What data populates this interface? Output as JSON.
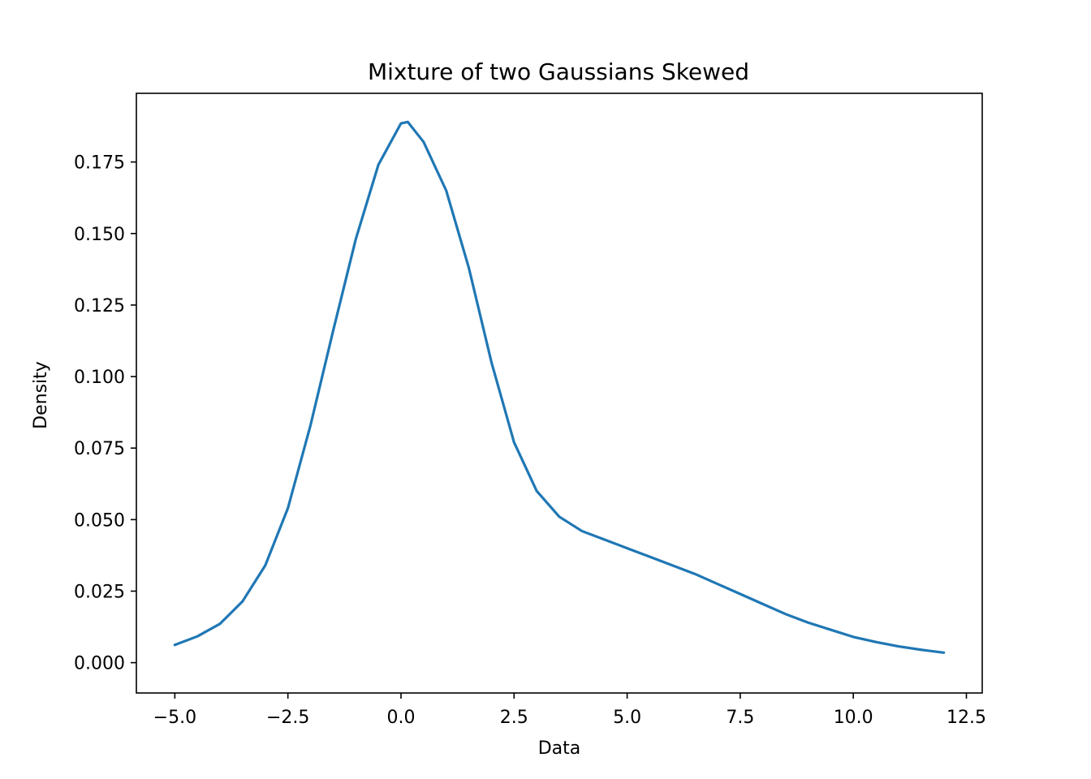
{
  "chart_data": {
    "type": "line",
    "title": "Mixture of two Gaussians Skewed",
    "xlabel": "Data",
    "ylabel": "Density",
    "xlim": [
      -5.85,
      12.85
    ],
    "ylim": [
      -0.0106,
      0.199
    ],
    "xticks": [
      -5.0,
      -2.5,
      0.0,
      2.5,
      5.0,
      7.5,
      10.0,
      12.5
    ],
    "xtick_labels": [
      "−5.0",
      "−2.5",
      "0.0",
      "2.5",
      "5.0",
      "7.5",
      "10.0",
      "12.5"
    ],
    "yticks": [
      0.0,
      0.025,
      0.05,
      0.075,
      0.1,
      0.125,
      0.15,
      0.175
    ],
    "ytick_labels": [
      "0.000",
      "0.025",
      "0.050",
      "0.075",
      "0.100",
      "0.125",
      "0.150",
      "0.175"
    ],
    "grid": false,
    "legend": false,
    "series": [
      {
        "color": "#1f77b4",
        "x": [
          -5.0,
          -4.5,
          -4.0,
          -3.5,
          -3.0,
          -2.5,
          -2.0,
          -1.5,
          -1.0,
          -0.5,
          0.0,
          0.15,
          0.5,
          1.0,
          1.5,
          2.0,
          2.5,
          3.0,
          3.5,
          4.0,
          4.5,
          5.0,
          5.5,
          6.0,
          6.5,
          7.0,
          7.5,
          8.0,
          8.5,
          9.0,
          9.5,
          10.0,
          10.5,
          11.0,
          11.5,
          12.0
        ],
        "y": [
          0.0062,
          0.0092,
          0.0136,
          0.0215,
          0.034,
          0.054,
          0.083,
          0.116,
          0.148,
          0.174,
          0.1885,
          0.189,
          0.182,
          0.165,
          0.138,
          0.105,
          0.077,
          0.06,
          0.051,
          0.046,
          0.043,
          0.04,
          0.037,
          0.034,
          0.031,
          0.0275,
          0.024,
          0.0205,
          0.017,
          0.014,
          0.0115,
          0.009,
          0.0072,
          0.0057,
          0.0045,
          0.0035
        ]
      }
    ]
  }
}
